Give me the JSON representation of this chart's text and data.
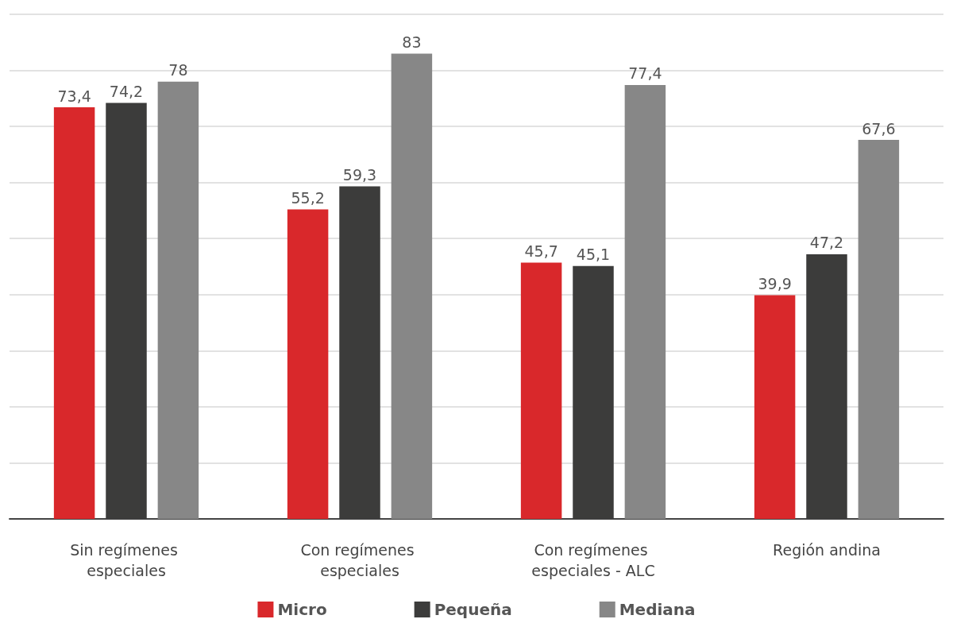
{
  "chart_data": {
    "type": "bar",
    "categories": [
      "Sin regímenes especiales",
      "Con regímenes especiales",
      "Con regímenes especiales - ALC",
      "Región andina"
    ],
    "series": [
      {
        "name": "Micro",
        "color": "#d9282b",
        "values": [
          73.4,
          55.2,
          45.7,
          39.9
        ],
        "value_labels": [
          "73,4",
          "55,2",
          "45,7",
          "39,9"
        ]
      },
      {
        "name": "Pequeña",
        "color": "#3c3c3b",
        "values": [
          74.2,
          59.3,
          45.1,
          47.2
        ],
        "value_labels": [
          "74,2",
          "59,3",
          "45,1",
          "47,2"
        ]
      },
      {
        "name": "Mediana",
        "color": "#878787",
        "values": [
          78,
          83,
          77.4,
          67.6
        ],
        "value_labels": [
          "78",
          "83",
          "77,4",
          "67,6"
        ]
      }
    ],
    "ylim": [
      0,
      90
    ],
    "yticks": [
      {
        "value": 0,
        "label": null
      },
      {
        "value": 10,
        "label": null
      },
      {
        "value": 20,
        "label": null
      },
      {
        "value": 30,
        "label": null
      },
      {
        "value": 40,
        "label": null
      },
      {
        "value": 50,
        "label": null
      },
      {
        "value": 60,
        "label": null
      },
      {
        "value": 70,
        "label": null
      },
      {
        "value": 80,
        "label": null
      },
      {
        "value": 90,
        "label": null
      }
    ],
    "tick_labels": "x",
    "grid": true,
    "legend": "bottom"
  }
}
